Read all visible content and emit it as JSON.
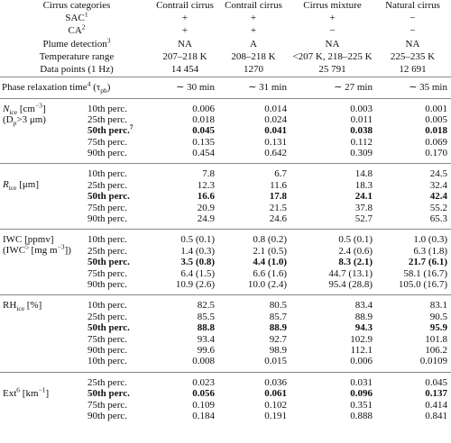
{
  "header_rows": [
    {
      "label": [
        "Cirrus categories"
      ],
      "cells": [
        "Contrail cirrus",
        "Contrail cirrus",
        "Cirrus mixture",
        "Natural cirrus"
      ]
    },
    {
      "label": [
        "SAC",
        "1"
      ],
      "cells": [
        "+",
        "+",
        "+",
        "−"
      ]
    },
    {
      "label": [
        "CA",
        "2"
      ],
      "cells": [
        "+",
        "+",
        "−",
        "−"
      ]
    },
    {
      "label": [
        "Plume detection",
        "3"
      ],
      "cells": [
        "NA",
        "A",
        "NA",
        "NA"
      ]
    },
    {
      "label": [
        "Temperature range"
      ],
      "cells": [
        "207–218 K",
        "208–218 K",
        "<207 K, 218–225 K",
        "225–235 K"
      ]
    },
    {
      "label": [
        "Data points (1 Hz)"
      ],
      "cells": [
        "14 454",
        "1270",
        "25 791",
        "12 691"
      ]
    }
  ],
  "phase": {
    "label": [
      "Phase relaxation time",
      "4",
      " (τ",
      "ph",
      ")"
    ],
    "cells": [
      "∼ 30 min",
      "∼ 31 min",
      "∼ 27 min",
      "∼ 35 min"
    ]
  },
  "sections": [
    {
      "label": [
        [
          "N",
          "ice",
          " [cm",
          "−3",
          "]"
        ],
        [
          "(D",
          "p",
          ">3 μm)"
        ]
      ],
      "rows": [
        {
          "perc": [
            "10th perc."
          ],
          "values": [
            "0.006",
            "0.014",
            "0.003",
            "0.001"
          ]
        },
        {
          "perc": [
            "25th perc."
          ],
          "values": [
            "0.018",
            "0.024",
            "0.011",
            "0.005"
          ]
        },
        {
          "perc": [
            "50th perc.",
            "7"
          ],
          "values": [
            "0.045",
            "0.041",
            "0.038",
            "0.018"
          ]
        },
        {
          "perc": [
            "75th perc."
          ],
          "values": [
            "0.135",
            "0.131",
            "0.112",
            "0.069"
          ]
        },
        {
          "perc": [
            "90th perc."
          ],
          "values": [
            "0.454",
            "0.642",
            "0.309",
            "0.170"
          ]
        }
      ]
    },
    {
      "label": [
        [
          "R",
          "ice",
          " [μm]"
        ]
      ],
      "rows": [
        {
          "perc": [
            "10th perc."
          ],
          "values": [
            "7.8",
            "6.7",
            "14.8",
            "24.5"
          ]
        },
        {
          "perc": [
            "25th perc."
          ],
          "values": [
            "12.3",
            "11.6",
            "18.3",
            "32.4"
          ]
        },
        {
          "perc": [
            "50th perc."
          ],
          "values": [
            "16.6",
            "17.8",
            "24.1",
            "42.4"
          ]
        },
        {
          "perc": [
            "75th perc."
          ],
          "values": [
            "20.9",
            "21.5",
            "37.8",
            "55.2"
          ]
        },
        {
          "perc": [
            "90th perc."
          ],
          "values": [
            "24.9",
            "24.6",
            "52.7",
            "65.3"
          ]
        }
      ]
    },
    {
      "label": [
        [
          "IWC [ppmv]"
        ],
        [
          "(IWC",
          "5",
          " [mg m",
          "−3",
          "])"
        ]
      ],
      "rows": [
        {
          "perc": [
            "10th perc."
          ],
          "values": [
            "0.5 (0.1)",
            "0.8 (0.2)",
            "0.5 (0.1)",
            "1.0 (0.3)"
          ]
        },
        {
          "perc": [
            "25th perc."
          ],
          "values": [
            "1.4 (0.3)",
            "2.1 (0.5)",
            "2.4 (0.6)",
            "6.3 (1.8)"
          ]
        },
        {
          "perc": [
            "50th perc."
          ],
          "values": [
            "3.5 (0.8)",
            "4.4 (1.0)",
            "8.3 (2.1)",
            "21.7 (6.1)"
          ]
        },
        {
          "perc": [
            "75th perc."
          ],
          "values": [
            "6.4 (1.5)",
            "6.6 (1.6)",
            "44.7 (13.1)",
            "58.1 (16.7)"
          ]
        },
        {
          "perc": [
            "90th perc."
          ],
          "values": [
            "10.9 (2.6)",
            "10.0 (2.4)",
            "95.4 (28.8)",
            "105.0 (16.7)"
          ]
        }
      ]
    },
    {
      "label": [
        [
          "RH",
          "ice",
          " [%]"
        ]
      ],
      "rows": [
        {
          "perc": [
            "10th perc."
          ],
          "values": [
            "82.5",
            "80.5",
            "83.4",
            "83.1"
          ]
        },
        {
          "perc": [
            "25th perc."
          ],
          "values": [
            "85.5",
            "85.7",
            "88.9",
            "90.5"
          ]
        },
        {
          "perc": [
            "50th perc."
          ],
          "values": [
            "88.8",
            "88.9",
            "94.3",
            "95.9"
          ]
        },
        {
          "perc": [
            "75th perc."
          ],
          "values": [
            "93.4",
            "92.7",
            "102.9",
            "101.8"
          ]
        },
        {
          "perc": [
            "90th perc."
          ],
          "values": [
            "99.6",
            "98.9",
            "112.1",
            "106.2"
          ]
        },
        {
          "perc": [
            "10th perc."
          ],
          "values": [
            "0.008",
            "0.015",
            "0.006",
            "0.0109"
          ]
        }
      ]
    },
    {
      "label": [
        [
          "Ext",
          "6",
          " [km",
          "−1",
          "]"
        ]
      ],
      "rows": [
        {
          "perc": [
            "25th perc."
          ],
          "values": [
            "0.023",
            "0.036",
            "0.031",
            "0.045"
          ]
        },
        {
          "perc": [
            "50th perc."
          ],
          "values": [
            "0.056",
            "0.061",
            "0.096",
            "0.137"
          ]
        },
        {
          "perc": [
            "75th perc."
          ],
          "values": [
            "0.109",
            "0.102",
            "0.351",
            "0.414"
          ]
        },
        {
          "perc": [
            "90th perc."
          ],
          "values": [
            "0.184",
            "0.191",
            "0.888",
            "0.841"
          ]
        }
      ]
    }
  ]
}
